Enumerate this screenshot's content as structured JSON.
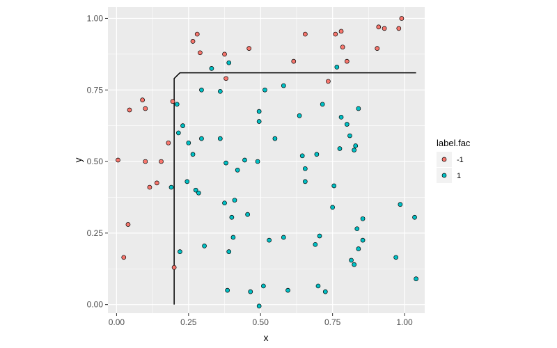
{
  "chart_data": {
    "type": "scatter",
    "title": "",
    "xlabel": "x",
    "ylabel": "y",
    "xlim": [
      -0.03,
      1.07
    ],
    "ylim": [
      -0.03,
      1.04
    ],
    "x_ticks": [
      0.0,
      0.25,
      0.5,
      0.75,
      1.0
    ],
    "x_tick_labels": [
      "0.00",
      "0.25",
      "0.50",
      "0.75",
      "1.00"
    ],
    "y_ticks": [
      0.0,
      0.25,
      0.5,
      0.75,
      1.0
    ],
    "y_tick_labels": [
      "0.00",
      "0.25",
      "0.50",
      "0.75",
      "1.00"
    ],
    "grid": true,
    "legend": {
      "title": "label.fac",
      "placement": "right",
      "entries": [
        {
          "label": "-1",
          "color": "#F8766D"
        },
        {
          "label": "1",
          "color": "#00BFC4"
        }
      ]
    },
    "colors": {
      "panel_bg": "#EBEBEB",
      "grid": "#FFFFFF",
      "point_outline": "#000000",
      "boundary_line": "#000000"
    },
    "series": [
      {
        "name": "-1",
        "color": "#F8766D",
        "points": [
          [
            0.005,
            0.505
          ],
          [
            0.025,
            0.165
          ],
          [
            0.04,
            0.28
          ],
          [
            0.045,
            0.68
          ],
          [
            0.09,
            0.715
          ],
          [
            0.1,
            0.685
          ],
          [
            0.1,
            0.5
          ],
          [
            0.115,
            0.41
          ],
          [
            0.14,
            0.425
          ],
          [
            0.155,
            0.5
          ],
          [
            0.18,
            0.565
          ],
          [
            0.195,
            0.71
          ],
          [
            0.2,
            0.13
          ],
          [
            0.265,
            0.92
          ],
          [
            0.28,
            0.945
          ],
          [
            0.29,
            0.88
          ],
          [
            0.375,
            0.875
          ],
          [
            0.38,
            0.79
          ],
          [
            0.46,
            0.895
          ],
          [
            0.615,
            0.85
          ],
          [
            0.655,
            0.945
          ],
          [
            0.735,
            0.78
          ],
          [
            0.76,
            0.945
          ],
          [
            0.78,
            0.955
          ],
          [
            0.785,
            0.9
          ],
          [
            0.8,
            0.85
          ],
          [
            0.905,
            0.895
          ],
          [
            0.91,
            0.97
          ],
          [
            0.93,
            0.965
          ],
          [
            0.98,
            0.965
          ],
          [
            0.99,
            1.0
          ]
        ]
      },
      {
        "name": "1",
        "color": "#00BFC4",
        "points": [
          [
            0.19,
            0.41
          ],
          [
            0.21,
            0.7
          ],
          [
            0.215,
            0.6
          ],
          [
            0.22,
            0.185
          ],
          [
            0.23,
            0.625
          ],
          [
            0.245,
            0.43
          ],
          [
            0.25,
            0.565
          ],
          [
            0.265,
            0.525
          ],
          [
            0.275,
            0.4
          ],
          [
            0.285,
            0.39
          ],
          [
            0.295,
            0.75
          ],
          [
            0.295,
            0.58
          ],
          [
            0.305,
            0.205
          ],
          [
            0.33,
            0.825
          ],
          [
            0.36,
            0.745
          ],
          [
            0.36,
            0.58
          ],
          [
            0.375,
            0.355
          ],
          [
            0.38,
            0.495
          ],
          [
            0.385,
            0.05
          ],
          [
            0.39,
            0.845
          ],
          [
            0.39,
            0.185
          ],
          [
            0.4,
            0.305
          ],
          [
            0.405,
            0.235
          ],
          [
            0.41,
            0.365
          ],
          [
            0.42,
            0.47
          ],
          [
            0.445,
            0.505
          ],
          [
            0.455,
            0.315
          ],
          [
            0.465,
            0.045
          ],
          [
            0.49,
            0.5
          ],
          [
            0.495,
            0.675
          ],
          [
            0.495,
            0.64
          ],
          [
            0.495,
            -0.005
          ],
          [
            0.51,
            0.065
          ],
          [
            0.515,
            0.75
          ],
          [
            0.53,
            0.225
          ],
          [
            0.55,
            0.58
          ],
          [
            0.58,
            0.765
          ],
          [
            0.58,
            0.235
          ],
          [
            0.595,
            0.05
          ],
          [
            0.635,
            0.66
          ],
          [
            0.645,
            0.52
          ],
          [
            0.655,
            0.475
          ],
          [
            0.655,
            0.43
          ],
          [
            0.69,
            0.21
          ],
          [
            0.695,
            0.525
          ],
          [
            0.7,
            0.065
          ],
          [
            0.705,
            0.24
          ],
          [
            0.715,
            0.7
          ],
          [
            0.725,
            0.045
          ],
          [
            0.75,
            0.34
          ],
          [
            0.755,
            0.415
          ],
          [
            0.765,
            0.83
          ],
          [
            0.775,
            0.545
          ],
          [
            0.78,
            0.655
          ],
          [
            0.8,
            0.63
          ],
          [
            0.81,
            0.59
          ],
          [
            0.815,
            0.155
          ],
          [
            0.825,
            0.54
          ],
          [
            0.825,
            0.14
          ],
          [
            0.83,
            0.555
          ],
          [
            0.835,
            0.265
          ],
          [
            0.84,
            0.685
          ],
          [
            0.84,
            0.195
          ],
          [
            0.855,
            0.3
          ],
          [
            0.855,
            0.225
          ],
          [
            0.97,
            0.165
          ],
          [
            0.985,
            0.35
          ],
          [
            1.035,
            0.305
          ],
          [
            1.04,
            0.09
          ]
        ]
      }
    ],
    "boundary_line": [
      [
        0.2,
        0.0
      ],
      [
        0.2,
        0.79
      ],
      [
        0.22,
        0.81
      ],
      [
        1.04,
        0.81
      ]
    ]
  }
}
